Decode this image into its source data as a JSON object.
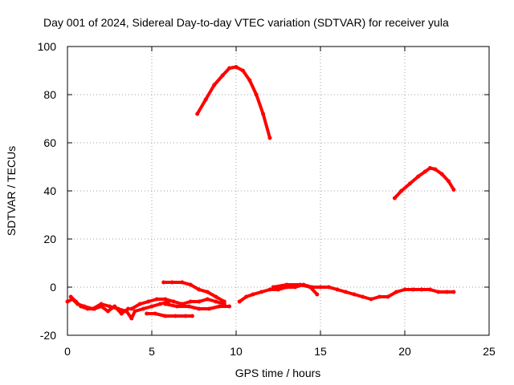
{
  "chart_data": {
    "type": "scatter",
    "title": "Day 001 of 2024, Sidereal Day-to-day VTEC variation (SDTVAR) for receiver yula",
    "xlabel": "GPS time / hours",
    "ylabel": "SDTVAR / TECUs",
    "xlim": [
      0,
      25
    ],
    "ylim": [
      -20,
      100
    ],
    "xticks": [
      "0",
      "5",
      "10",
      "15",
      "20",
      "25"
    ],
    "yticks": [
      "-20",
      "0",
      "20",
      "40",
      "60",
      "80",
      "100"
    ],
    "grid": true,
    "legend": "none",
    "color": "#ff0000",
    "series": [
      {
        "name": "arc-1",
        "x": [
          7.7,
          8.2,
          8.7,
          9.2,
          9.6,
          10.0,
          10.4,
          10.8,
          11.2,
          11.6,
          12.0
        ],
        "y": [
          72,
          78,
          84,
          88,
          91,
          91.5,
          90,
          86,
          80,
          72,
          62
        ]
      },
      {
        "name": "arc-2",
        "x": [
          19.4,
          19.8,
          20.3,
          20.8,
          21.2,
          21.5,
          21.8,
          22.2,
          22.6,
          22.9
        ],
        "y": [
          37,
          40,
          43,
          46,
          48,
          49.5,
          49,
          47,
          44,
          40.5
        ]
      },
      {
        "name": "arc-3",
        "x": [
          0.0,
          0.3,
          0.6,
          1.0,
          1.5,
          2.0,
          2.5,
          3.0,
          3.5,
          3.8,
          4.0,
          4.5,
          5.0,
          5.5,
          6.0
        ],
        "y": [
          -6,
          -5,
          -7,
          -8,
          -9,
          -7,
          -8,
          -9,
          -10,
          -13,
          -10,
          -9,
          -8,
          -7,
          -6
        ]
      },
      {
        "name": "arc-4",
        "x": [
          0.2,
          0.5,
          0.8,
          1.2,
          1.6,
          2.0,
          2.4,
          2.8,
          3.2,
          3.6
        ],
        "y": [
          -4,
          -6,
          -8,
          -9,
          -9,
          -8,
          -10,
          -8,
          -11,
          -9
        ]
      },
      {
        "name": "arc-5",
        "x": [
          3.8,
          4.3,
          4.8,
          5.3,
          5.8,
          6.3,
          6.8,
          7.3,
          7.8,
          8.3,
          8.8,
          9.3
        ],
        "y": [
          -9,
          -7,
          -6,
          -5,
          -5,
          -6,
          -7,
          -6,
          -6,
          -5,
          -6,
          -7
        ]
      },
      {
        "name": "arc-6",
        "x": [
          5.8,
          6.5,
          7.2,
          7.8,
          8.4,
          9.0,
          9.6
        ],
        "y": [
          -7,
          -8,
          -8,
          -9,
          -9,
          -8,
          -8
        ]
      },
      {
        "name": "arc-7",
        "x": [
          5.7,
          6.2,
          6.8,
          7.3,
          7.8,
          8.3,
          8.8,
          9.3
        ],
        "y": [
          2,
          2,
          2,
          1,
          -1,
          -2,
          -4,
          -6
        ]
      },
      {
        "name": "arc-8",
        "x": [
          4.7,
          5.2,
          5.8,
          6.4,
          7.0,
          7.4
        ],
        "y": [
          -11,
          -11,
          -12,
          -12,
          -12,
          -12
        ]
      },
      {
        "name": "arc-9",
        "x": [
          10.2,
          10.6,
          11.0,
          11.5,
          12.0,
          12.5,
          13.0,
          13.5,
          14.0,
          14.5,
          15.0,
          15.5,
          16.0,
          16.5,
          17.0,
          17.5,
          18.0,
          18.5,
          19.0,
          19.5,
          20.0,
          20.5,
          21.0,
          21.5,
          22.0,
          22.5,
          22.9
        ],
        "y": [
          -6,
          -4,
          -3,
          -2,
          -1,
          -1,
          0,
          0,
          1,
          0,
          0,
          0,
          -1,
          -2,
          -3,
          -4,
          -5,
          -4,
          -4,
          -2,
          -1,
          -1,
          -1,
          -1,
          -2,
          -2,
          -2
        ]
      },
      {
        "name": "arc-10",
        "x": [
          12.2,
          13.0,
          13.8,
          14.4,
          14.8
        ],
        "y": [
          0,
          1,
          1,
          0,
          -3
        ]
      }
    ]
  }
}
